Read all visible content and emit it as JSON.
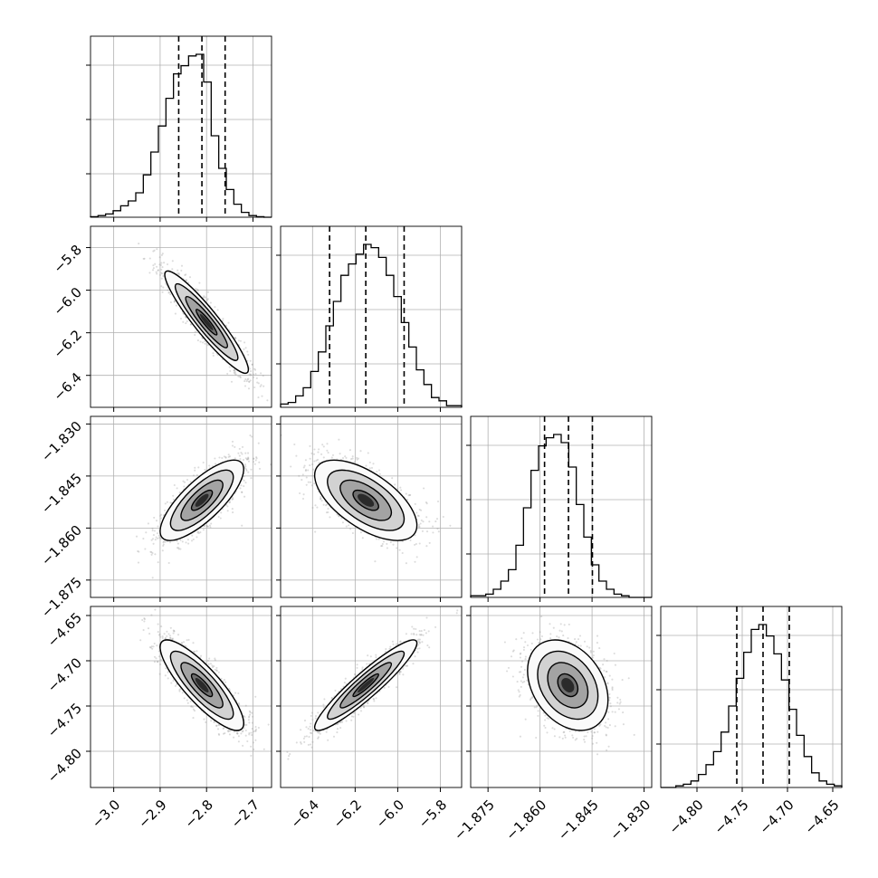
{
  "chart_data": {
    "type": "corner",
    "title": "",
    "parameters": [
      {
        "name": "",
        "range": [
          -3.05,
          -2.66
        ],
        "ticks": [
          -3.0,
          -2.9,
          -2.8,
          -2.7
        ],
        "tick_labels": [
          "−3.0",
          "−2.9",
          "−2.8",
          "−2.7"
        ],
        "quantiles": [
          -2.86,
          -2.81,
          -2.76
        ],
        "histogram": [
          0.003,
          0.01,
          0.02,
          0.04,
          0.07,
          0.1,
          0.15,
          0.26,
          0.4,
          0.56,
          0.73,
          0.88,
          0.93,
          0.99,
          1.0,
          0.83,
          0.5,
          0.3,
          0.17,
          0.08,
          0.03,
          0.01,
          0.003,
          0.0
        ]
      },
      {
        "name": "",
        "range": [
          -6.55,
          -5.7
        ],
        "ticks": [
          -6.4,
          -6.2,
          -6.0,
          -5.8
        ],
        "tick_labels": [
          "−6.4",
          "−6.2",
          "−6.0",
          "−5.8"
        ],
        "quantiles": [
          -6.32,
          -6.15,
          -5.97
        ],
        "histogram": [
          0.02,
          0.03,
          0.07,
          0.12,
          0.22,
          0.34,
          0.5,
          0.65,
          0.81,
          0.88,
          0.94,
          1.0,
          0.98,
          0.92,
          0.81,
          0.68,
          0.52,
          0.37,
          0.23,
          0.14,
          0.06,
          0.04,
          0.01,
          0.01
        ]
      },
      {
        "name": "",
        "range": [
          -1.88,
          -1.8278
        ],
        "ticks": [
          -1.875,
          -1.86,
          -1.845,
          -1.83
        ],
        "tick_labels": [
          "−1.875",
          "−1.860",
          "−1.845",
          "−1.830"
        ],
        "quantiles": [
          -1.8587,
          -1.8518,
          -1.8449
        ],
        "histogram": [
          0.01,
          0.01,
          0.02,
          0.05,
          0.1,
          0.17,
          0.32,
          0.55,
          0.78,
          0.93,
          0.98,
          1.0,
          0.95,
          0.8,
          0.57,
          0.37,
          0.2,
          0.1,
          0.05,
          0.02,
          0.01,
          0.0,
          0.0,
          0.0
        ]
      },
      {
        "name": "",
        "range": [
          -4.84,
          -4.64
        ],
        "ticks": [
          -4.8,
          -4.75,
          -4.7,
          -4.65
        ],
        "tick_labels": [
          "−4.80",
          "−4.75",
          "−4.70",
          "−4.65"
        ],
        "quantiles": [
          -4.756,
          -4.727,
          -4.698
        ],
        "histogram": [
          0.0,
          0.0,
          0.01,
          0.02,
          0.04,
          0.08,
          0.14,
          0.22,
          0.34,
          0.5,
          0.67,
          0.83,
          0.97,
          1.0,
          0.93,
          0.82,
          0.66,
          0.48,
          0.32,
          0.19,
          0.09,
          0.04,
          0.02,
          0.01
        ]
      }
    ],
    "pairs": [
      {
        "x": 0,
        "y": 1,
        "center": [
          -2.8,
          -6.15
        ],
        "sd": [
          0.045,
          0.12
        ],
        "corr": -0.93,
        "samples": 1400
      },
      {
        "x": 0,
        "y": 2,
        "center": [
          -2.81,
          -1.852
        ],
        "sd": [
          0.045,
          0.0058
        ],
        "corr": 0.77,
        "samples": 1400
      },
      {
        "x": 1,
        "y": 2,
        "center": [
          -6.15,
          -1.852
        ],
        "sd": [
          0.12,
          0.0058
        ],
        "corr": -0.62,
        "samples": 1400
      },
      {
        "x": 0,
        "y": 3,
        "center": [
          -2.81,
          -4.727
        ],
        "sd": [
          0.045,
          0.025
        ],
        "corr": -0.84,
        "samples": 1400
      },
      {
        "x": 1,
        "y": 3,
        "center": [
          -6.15,
          -4.727
        ],
        "sd": [
          0.12,
          0.025
        ],
        "corr": 0.93,
        "samples": 1400
      },
      {
        "x": 2,
        "y": 3,
        "center": [
          -1.852,
          -4.727
        ],
        "sd": [
          0.0058,
          0.025
        ],
        "corr": -0.32,
        "samples": 1400
      }
    ],
    "contour_levels": [
      0.5,
      1.0,
      1.5,
      2.0
    ],
    "grid": true,
    "colors": {
      "line": "#000000",
      "points": "#9a9a9a",
      "grid": "#b0b0b0",
      "background": "#ffffff"
    }
  }
}
